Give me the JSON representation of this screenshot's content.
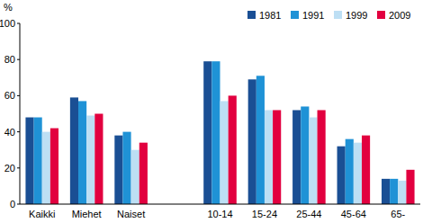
{
  "chart_data": {
    "type": "bar",
    "y_label": "%",
    "categories": [
      "Kaikki",
      "Miehet",
      "Naiset",
      null,
      "10-14",
      "15-24",
      "25-44",
      "45-64",
      "65-"
    ],
    "series": [
      {
        "name": "1981",
        "color": "#1a4f94",
        "values": [
          48,
          59,
          38,
          null,
          79,
          69,
          52,
          32,
          14
        ]
      },
      {
        "name": "1991",
        "color": "#1f92d6",
        "values": [
          48,
          57,
          40,
          null,
          79,
          71,
          54,
          36,
          14
        ]
      },
      {
        "name": "1999",
        "color": "#bddff4",
        "values": [
          40,
          49,
          30,
          null,
          57,
          52,
          48,
          34,
          13
        ]
      },
      {
        "name": "2009",
        "color": "#e2003f",
        "values": [
          42,
          50,
          34,
          null,
          60,
          52,
          52,
          38,
          19
        ]
      }
    ],
    "ylim": [
      0,
      100
    ],
    "yticks": [
      0,
      20,
      40,
      60,
      80,
      100
    ],
    "grid": false,
    "legend": "top-right"
  }
}
